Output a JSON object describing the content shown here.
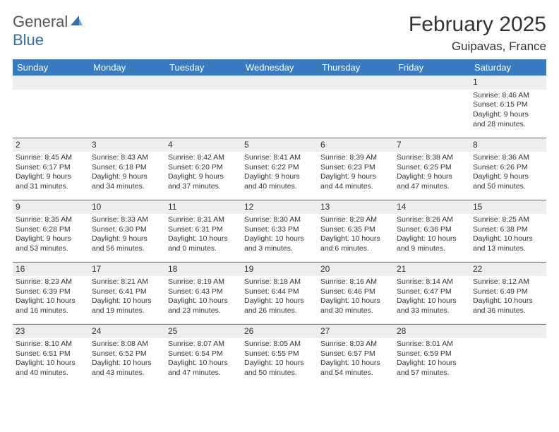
{
  "logo": {
    "word1": "General",
    "word2": "Blue"
  },
  "title": "February 2025",
  "location": "Guipavas, France",
  "colors": {
    "header_bg": "#3a7ac0",
    "header_fg": "#ffffff",
    "daynum_bg": "#eeeeee",
    "rule": "#3a7ac0",
    "text": "#333333",
    "logo_gray": "#555555",
    "logo_blue": "#2f6fae",
    "page_bg": "#ffffff"
  },
  "weekdays": [
    "Sunday",
    "Monday",
    "Tuesday",
    "Wednesday",
    "Thursday",
    "Friday",
    "Saturday"
  ],
  "weeks": [
    [
      null,
      null,
      null,
      null,
      null,
      null,
      {
        "n": "1",
        "sunrise": "Sunrise: 8:46 AM",
        "sunset": "Sunset: 6:15 PM",
        "day1": "Daylight: 9 hours",
        "day2": "and 28 minutes."
      }
    ],
    [
      {
        "n": "2",
        "sunrise": "Sunrise: 8:45 AM",
        "sunset": "Sunset: 6:17 PM",
        "day1": "Daylight: 9 hours",
        "day2": "and 31 minutes."
      },
      {
        "n": "3",
        "sunrise": "Sunrise: 8:43 AM",
        "sunset": "Sunset: 6:18 PM",
        "day1": "Daylight: 9 hours",
        "day2": "and 34 minutes."
      },
      {
        "n": "4",
        "sunrise": "Sunrise: 8:42 AM",
        "sunset": "Sunset: 6:20 PM",
        "day1": "Daylight: 9 hours",
        "day2": "and 37 minutes."
      },
      {
        "n": "5",
        "sunrise": "Sunrise: 8:41 AM",
        "sunset": "Sunset: 6:22 PM",
        "day1": "Daylight: 9 hours",
        "day2": "and 40 minutes."
      },
      {
        "n": "6",
        "sunrise": "Sunrise: 8:39 AM",
        "sunset": "Sunset: 6:23 PM",
        "day1": "Daylight: 9 hours",
        "day2": "and 44 minutes."
      },
      {
        "n": "7",
        "sunrise": "Sunrise: 8:38 AM",
        "sunset": "Sunset: 6:25 PM",
        "day1": "Daylight: 9 hours",
        "day2": "and 47 minutes."
      },
      {
        "n": "8",
        "sunrise": "Sunrise: 8:36 AM",
        "sunset": "Sunset: 6:26 PM",
        "day1": "Daylight: 9 hours",
        "day2": "and 50 minutes."
      }
    ],
    [
      {
        "n": "9",
        "sunrise": "Sunrise: 8:35 AM",
        "sunset": "Sunset: 6:28 PM",
        "day1": "Daylight: 9 hours",
        "day2": "and 53 minutes."
      },
      {
        "n": "10",
        "sunrise": "Sunrise: 8:33 AM",
        "sunset": "Sunset: 6:30 PM",
        "day1": "Daylight: 9 hours",
        "day2": "and 56 minutes."
      },
      {
        "n": "11",
        "sunrise": "Sunrise: 8:31 AM",
        "sunset": "Sunset: 6:31 PM",
        "day1": "Daylight: 10 hours",
        "day2": "and 0 minutes."
      },
      {
        "n": "12",
        "sunrise": "Sunrise: 8:30 AM",
        "sunset": "Sunset: 6:33 PM",
        "day1": "Daylight: 10 hours",
        "day2": "and 3 minutes."
      },
      {
        "n": "13",
        "sunrise": "Sunrise: 8:28 AM",
        "sunset": "Sunset: 6:35 PM",
        "day1": "Daylight: 10 hours",
        "day2": "and 6 minutes."
      },
      {
        "n": "14",
        "sunrise": "Sunrise: 8:26 AM",
        "sunset": "Sunset: 6:36 PM",
        "day1": "Daylight: 10 hours",
        "day2": "and 9 minutes."
      },
      {
        "n": "15",
        "sunrise": "Sunrise: 8:25 AM",
        "sunset": "Sunset: 6:38 PM",
        "day1": "Daylight: 10 hours",
        "day2": "and 13 minutes."
      }
    ],
    [
      {
        "n": "16",
        "sunrise": "Sunrise: 8:23 AM",
        "sunset": "Sunset: 6:39 PM",
        "day1": "Daylight: 10 hours",
        "day2": "and 16 minutes."
      },
      {
        "n": "17",
        "sunrise": "Sunrise: 8:21 AM",
        "sunset": "Sunset: 6:41 PM",
        "day1": "Daylight: 10 hours",
        "day2": "and 19 minutes."
      },
      {
        "n": "18",
        "sunrise": "Sunrise: 8:19 AM",
        "sunset": "Sunset: 6:43 PM",
        "day1": "Daylight: 10 hours",
        "day2": "and 23 minutes."
      },
      {
        "n": "19",
        "sunrise": "Sunrise: 8:18 AM",
        "sunset": "Sunset: 6:44 PM",
        "day1": "Daylight: 10 hours",
        "day2": "and 26 minutes."
      },
      {
        "n": "20",
        "sunrise": "Sunrise: 8:16 AM",
        "sunset": "Sunset: 6:46 PM",
        "day1": "Daylight: 10 hours",
        "day2": "and 30 minutes."
      },
      {
        "n": "21",
        "sunrise": "Sunrise: 8:14 AM",
        "sunset": "Sunset: 6:47 PM",
        "day1": "Daylight: 10 hours",
        "day2": "and 33 minutes."
      },
      {
        "n": "22",
        "sunrise": "Sunrise: 8:12 AM",
        "sunset": "Sunset: 6:49 PM",
        "day1": "Daylight: 10 hours",
        "day2": "and 36 minutes."
      }
    ],
    [
      {
        "n": "23",
        "sunrise": "Sunrise: 8:10 AM",
        "sunset": "Sunset: 6:51 PM",
        "day1": "Daylight: 10 hours",
        "day2": "and 40 minutes."
      },
      {
        "n": "24",
        "sunrise": "Sunrise: 8:08 AM",
        "sunset": "Sunset: 6:52 PM",
        "day1": "Daylight: 10 hours",
        "day2": "and 43 minutes."
      },
      {
        "n": "25",
        "sunrise": "Sunrise: 8:07 AM",
        "sunset": "Sunset: 6:54 PM",
        "day1": "Daylight: 10 hours",
        "day2": "and 47 minutes."
      },
      {
        "n": "26",
        "sunrise": "Sunrise: 8:05 AM",
        "sunset": "Sunset: 6:55 PM",
        "day1": "Daylight: 10 hours",
        "day2": "and 50 minutes."
      },
      {
        "n": "27",
        "sunrise": "Sunrise: 8:03 AM",
        "sunset": "Sunset: 6:57 PM",
        "day1": "Daylight: 10 hours",
        "day2": "and 54 minutes."
      },
      {
        "n": "28",
        "sunrise": "Sunrise: 8:01 AM",
        "sunset": "Sunset: 6:59 PM",
        "day1": "Daylight: 10 hours",
        "day2": "and 57 minutes."
      },
      null
    ]
  ]
}
